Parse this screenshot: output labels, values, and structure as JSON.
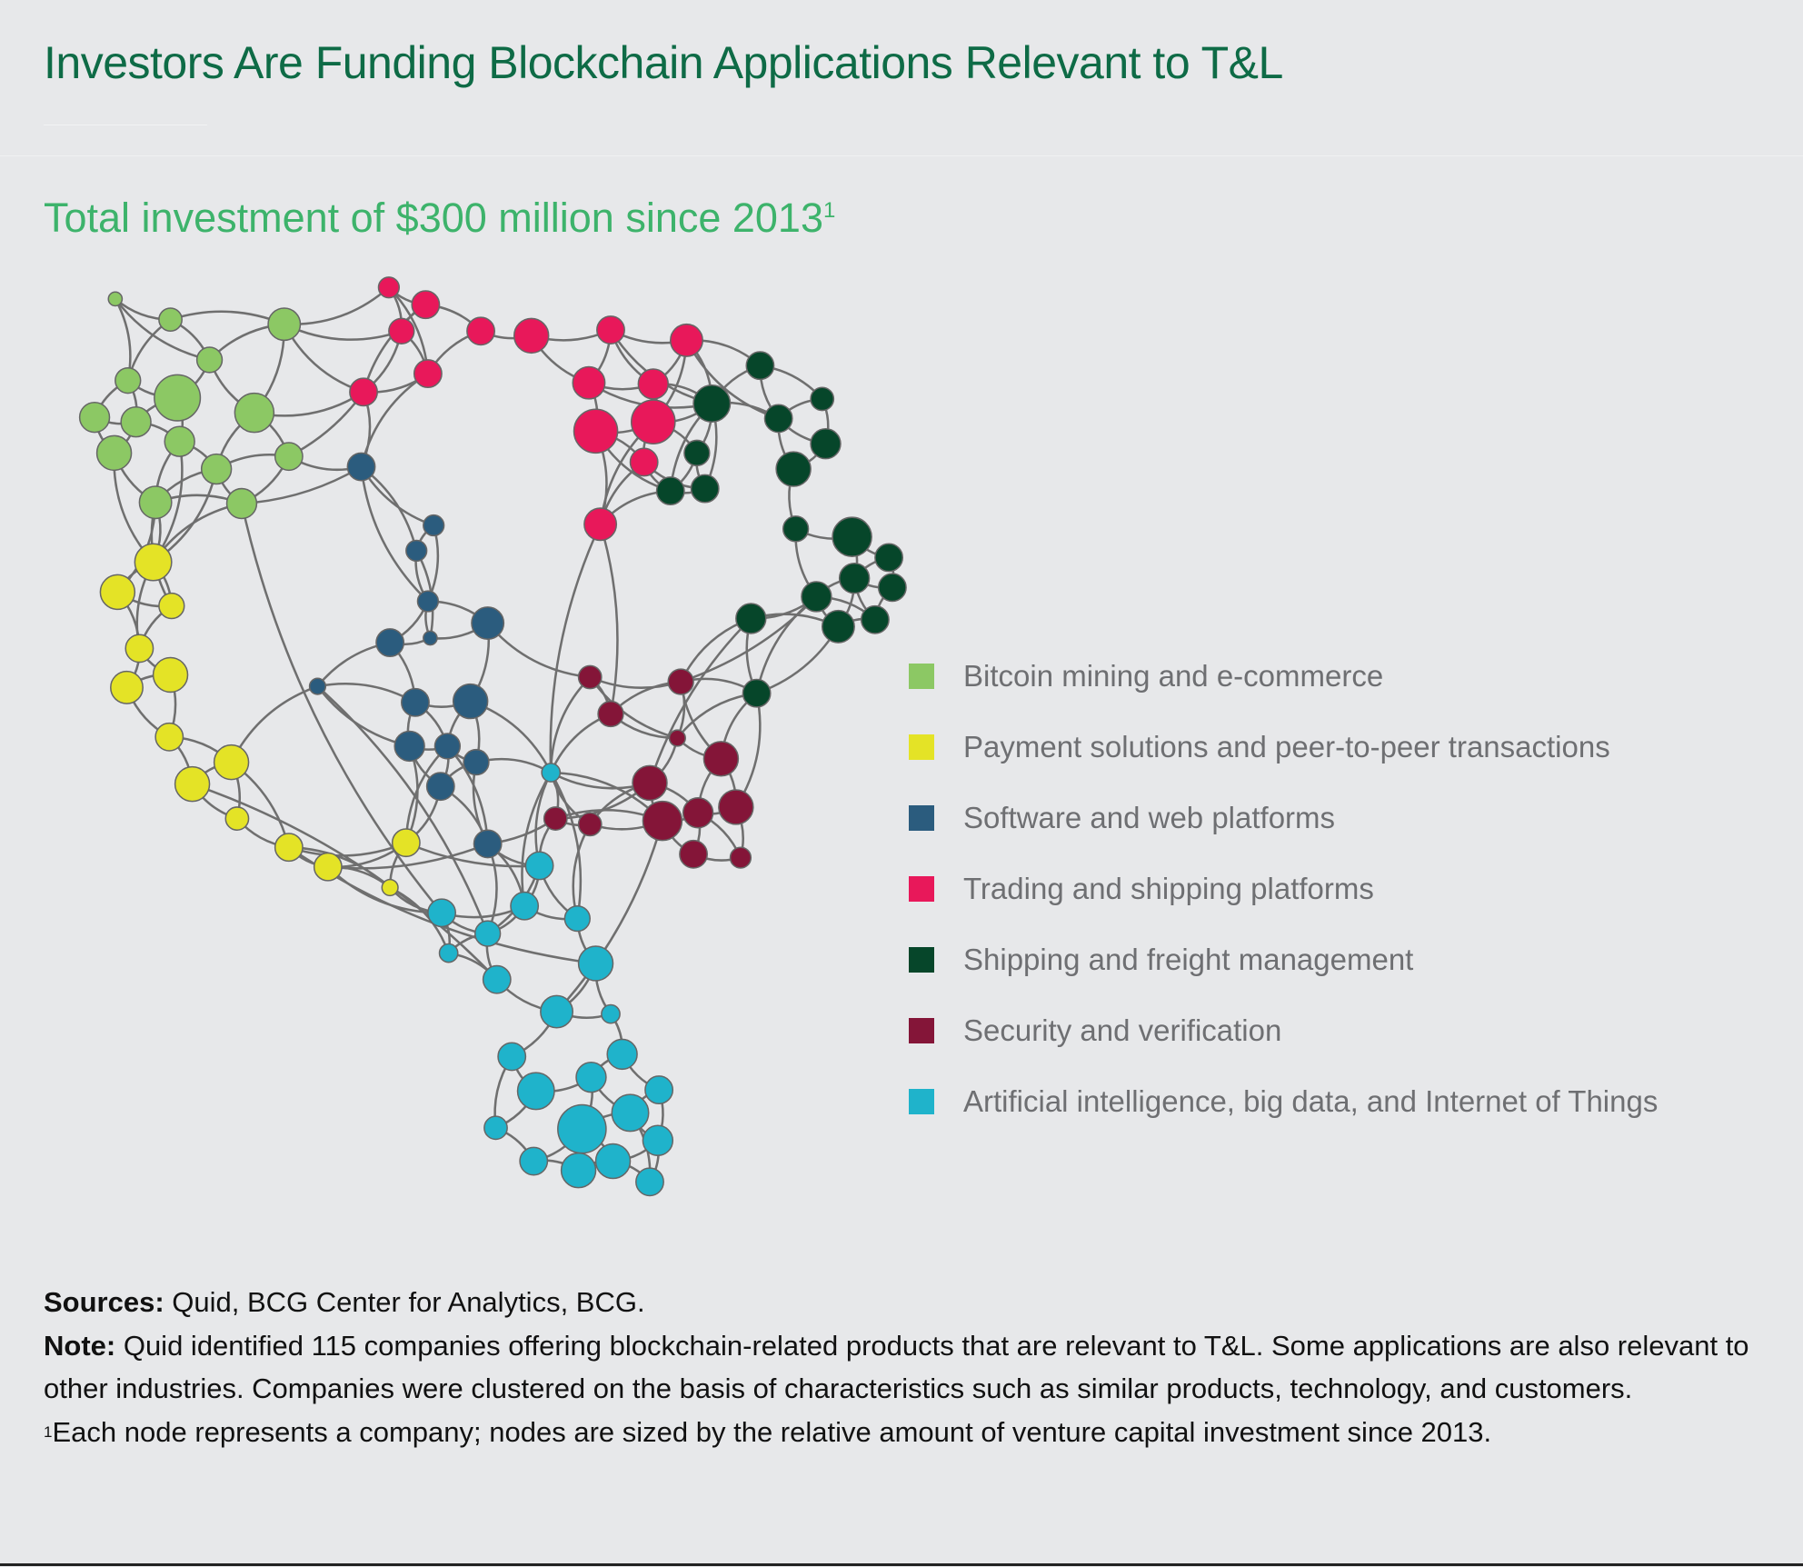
{
  "title": "Investors Are Funding Blockchain Applications Relevant to T&L",
  "subtitle": "Total investment of $300 million since 2013",
  "subtitle_footnote_mark": "1",
  "legend": [
    {
      "label": "Bitcoin mining and e-commerce",
      "color": "#8cc864"
    },
    {
      "label": "Payment solutions and peer-to-peer transactions",
      "color": "#e4e326"
    },
    {
      "label": "Software and web platforms",
      "color": "#2b5c7e"
    },
    {
      "label": "Trading and shipping platforms",
      "color": "#e8185a"
    },
    {
      "label": "Shipping and freight management",
      "color": "#06462a"
    },
    {
      "label": "Security and verification",
      "color": "#841538"
    },
    {
      "label": "Artificial intelligence, big data, and Internet of Things",
      "color": "#1fb3cb"
    }
  ],
  "edge_color": "#6f6f6f",
  "footer": {
    "sources_label": "Sources:",
    "sources_text": " Quid, BCG Center for Analytics, BCG.",
    "note_label": "Note:",
    "note_text": " Quid identified 115 companies offering blockchain-related products that are relevant to T&L. Some applications are also relevant to other industries. Companies were clustered on the basis of characteristics such as similar products, technology, and customers.",
    "footnote_mark": "1",
    "footnote_text": "Each node represents a company; nodes are sized by the relative amount of venture capital investment since 2013."
  }
}
